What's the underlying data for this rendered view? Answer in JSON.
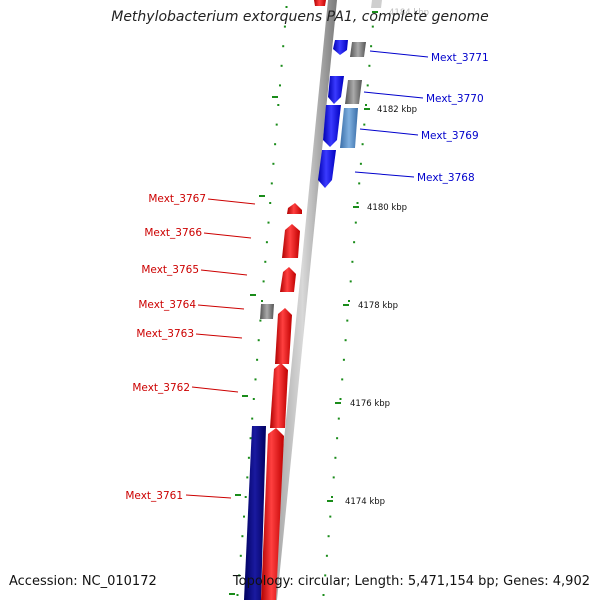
{
  "header": {
    "title": "Methylobacterium extorquens PA1, complete genome"
  },
  "footer": {
    "accession": "Accession: NC_010172",
    "topology": "Topology: circular; Length: 5,471,154 bp; Genes: 4,902"
  },
  "colors": {
    "plus_strand_gene": "#ff0000",
    "minus_strand_gene": "#0000ff",
    "minus_strand_alt": "#4a86c8",
    "uncharacterized": "#777777",
    "large_feature": "#000080",
    "ruler_tick": "#1a8c1a",
    "plus_label": "#cc0000",
    "minus_label": "#0000cc"
  },
  "ruler": {
    "unit": "kbp",
    "labels": [
      "4184 kbp",
      "4182 kbp",
      "4180 kbp",
      "4178 kbp",
      "4176 kbp",
      "4174 kbp"
    ]
  },
  "genes": [
    {
      "label": "Mext_3771",
      "strand": "minus",
      "icon": "arrow-left-icon"
    },
    {
      "label": "Mext_3770",
      "strand": "minus",
      "icon": "arrow-left-icon"
    },
    {
      "label": "Mext_3769",
      "strand": "minus",
      "icon": "arrow-left-icon"
    },
    {
      "label": "Mext_3768",
      "strand": "minus",
      "icon": "arrow-left-icon"
    },
    {
      "label": "Mext_3767",
      "strand": "plus",
      "icon": "arrow-right-icon"
    },
    {
      "label": "Mext_3766",
      "strand": "plus",
      "icon": "arrow-right-icon"
    },
    {
      "label": "Mext_3765",
      "strand": "plus",
      "icon": "arrow-right-icon"
    },
    {
      "label": "Mext_3764",
      "strand": "plus",
      "icon": "arrow-right-icon"
    },
    {
      "label": "Mext_3763",
      "strand": "plus",
      "icon": "arrow-right-icon"
    },
    {
      "label": "Mext_3762",
      "strand": "plus",
      "icon": "arrow-right-icon"
    },
    {
      "label": "Mext_3761",
      "strand": "plus",
      "icon": "arrow-right-icon"
    }
  ]
}
